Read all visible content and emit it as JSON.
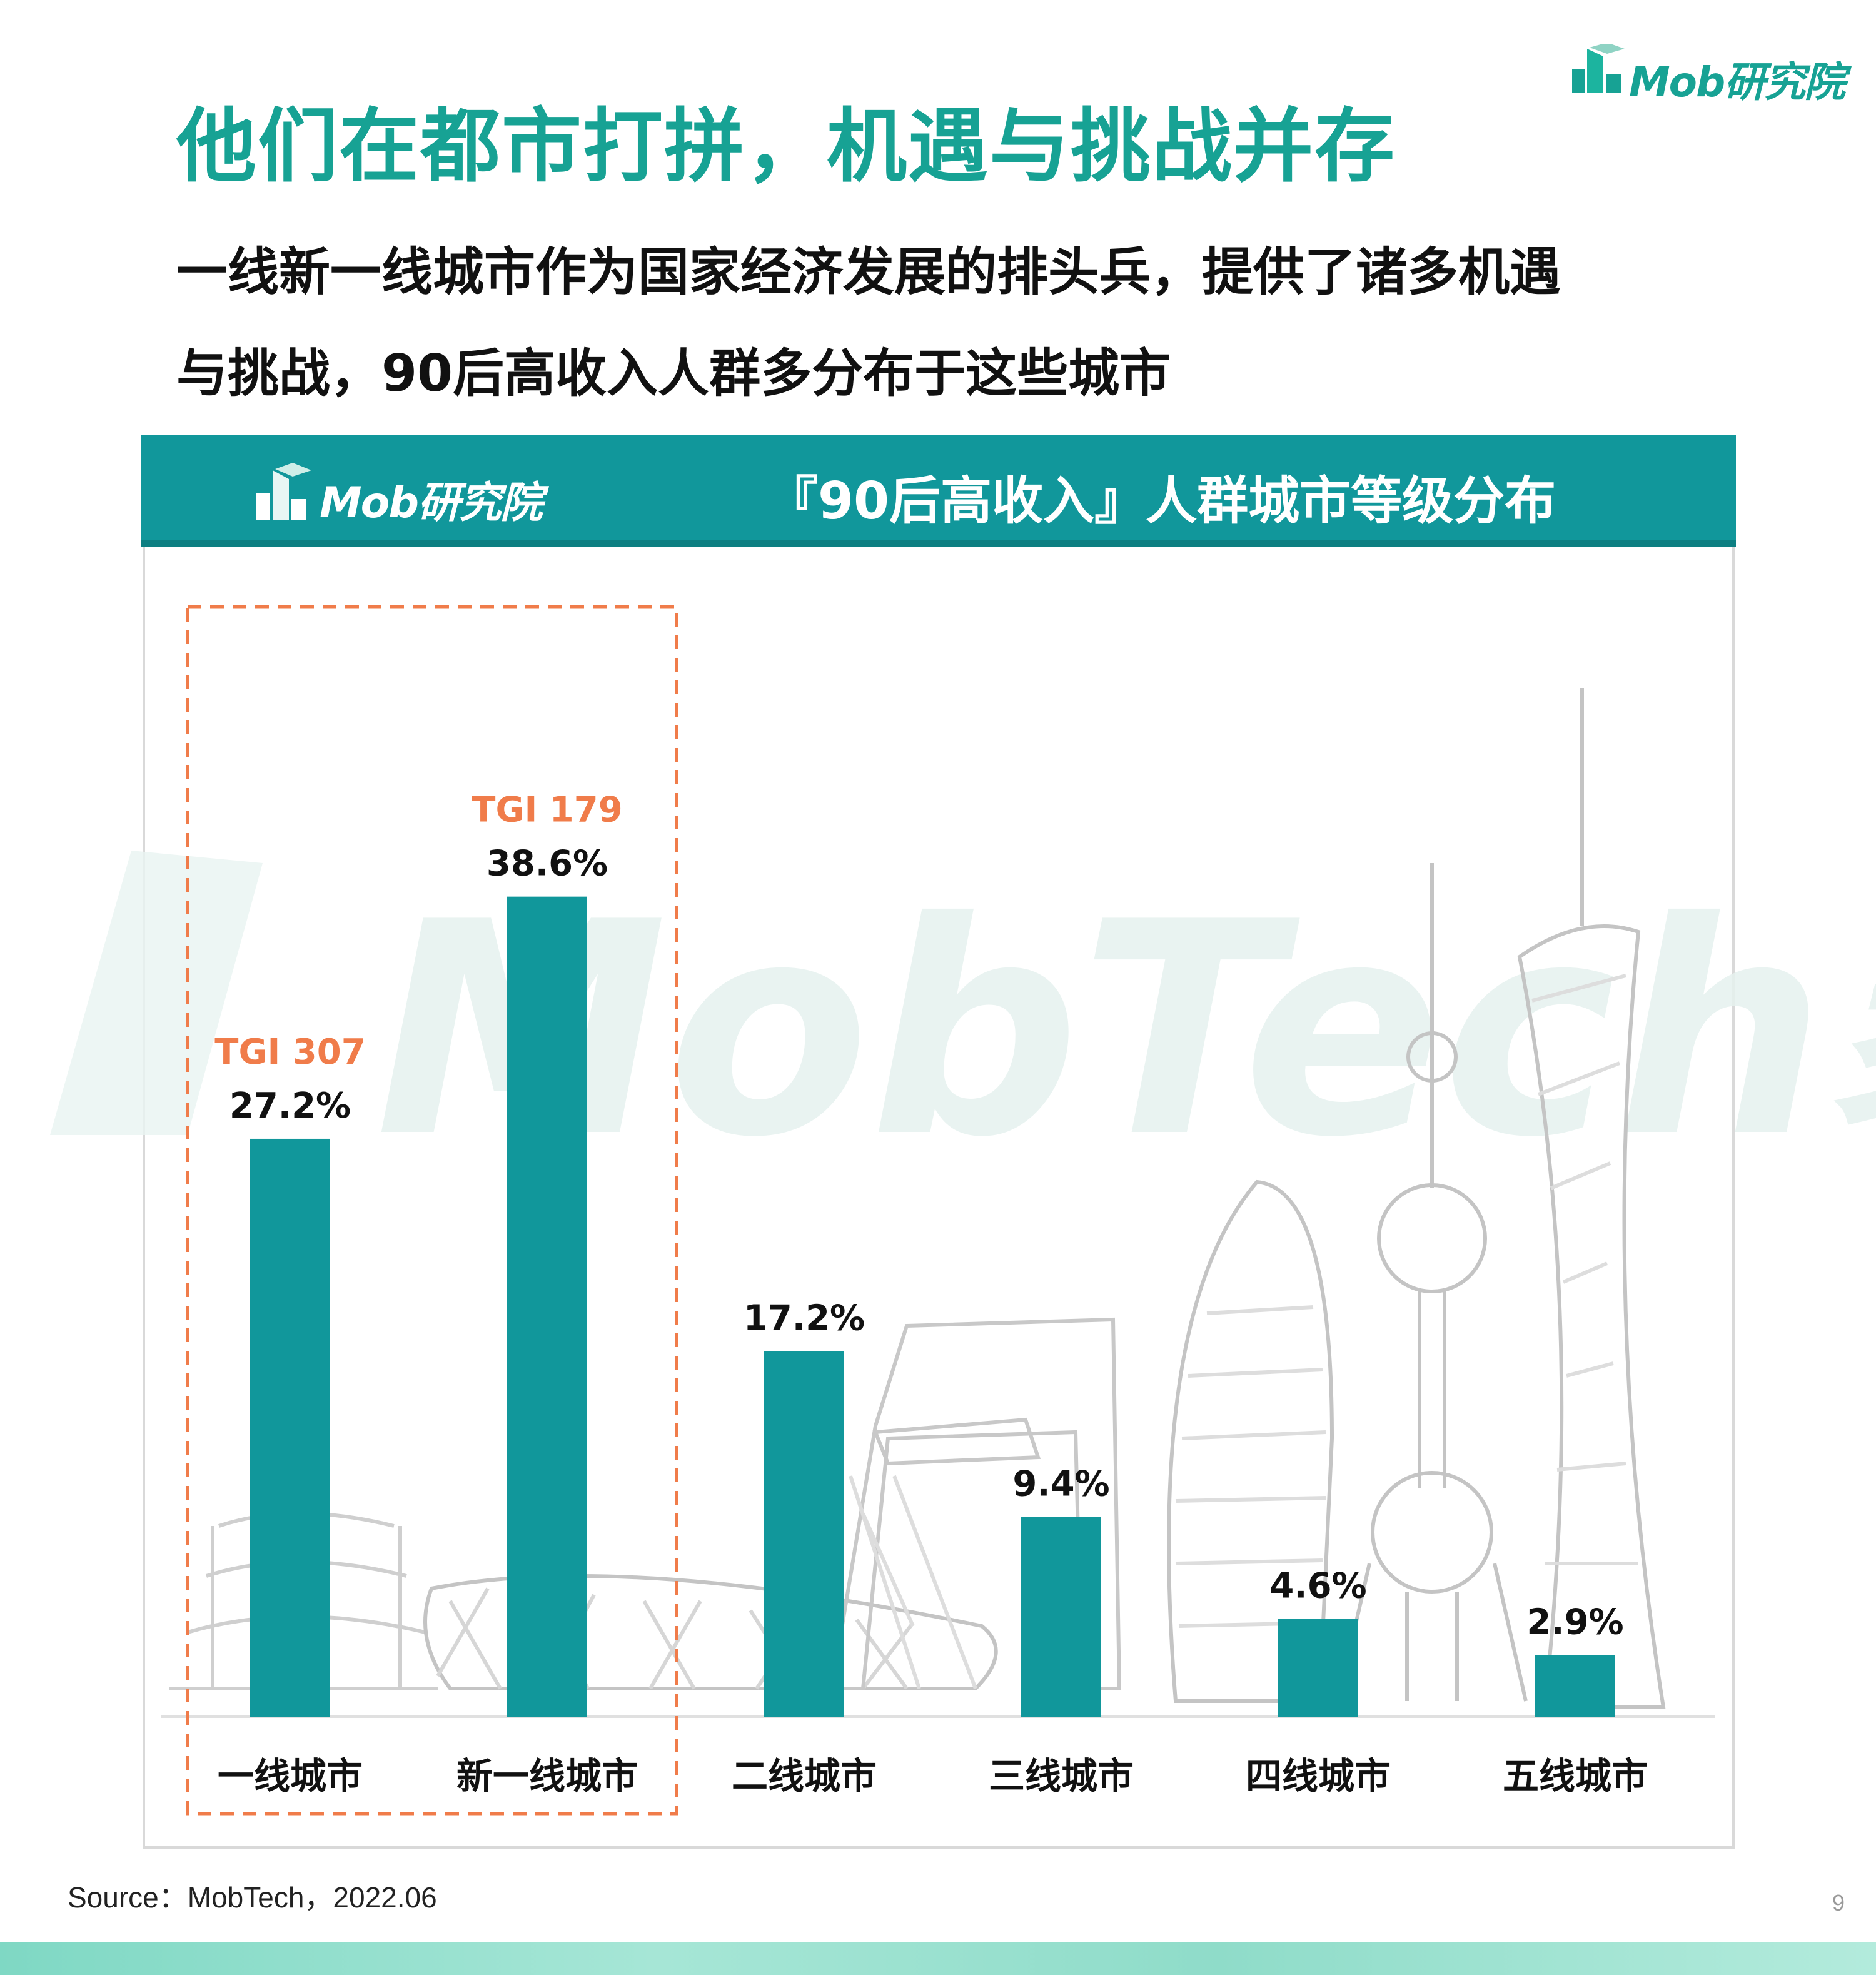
{
  "brand": {
    "name": "Mob研究院",
    "color": "#17a294"
  },
  "title": "他们在都市打拼，机遇与挑战并存",
  "subtitle": {
    "line1": "一线新一线城市作为国家经济发展的排头兵，提供了诸多机遇",
    "line2": "与挑战，90后高收入人群多分布于这些城市"
  },
  "panel": {
    "header_color": "#11979b",
    "logo_text": "Mob研究院",
    "title": "『90后高收入』人群城市等级分布"
  },
  "chart_data": {
    "type": "bar",
    "title": "『90后高收入』人群城市等级分布",
    "categories": [
      "一线城市",
      "新一线城市",
      "二线城市",
      "三线城市",
      "四线城市",
      "五线城市"
    ],
    "values": [
      27.2,
      38.6,
      17.2,
      9.4,
      4.6,
      2.9
    ],
    "value_labels": [
      "27.2%",
      "38.6%",
      "17.2%",
      "9.4%",
      "4.6%",
      "2.9%"
    ],
    "annotations": [
      {
        "category": "一线城市",
        "text": "TGI 307"
      },
      {
        "category": "新一线城市",
        "text": "TGI 179"
      }
    ],
    "ylim": [
      0,
      40
    ],
    "bar_color": "#11979b",
    "annotation_color": "#f07c4a",
    "highlight_box": {
      "categories": [
        "一线城市",
        "新一线城市"
      ],
      "style": "dashed",
      "color": "#f07c4a"
    },
    "grid": false,
    "legend": "none",
    "xlabel": "",
    "ylabel": ""
  },
  "watermark": {
    "text": "MobTech袤博"
  },
  "source": "Source：MobTech，2022.06",
  "page_number": "9"
}
